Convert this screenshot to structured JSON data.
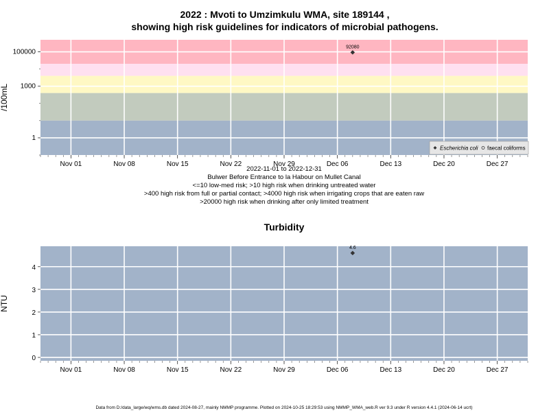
{
  "title_line1": "2022 : Mvoti to Umzimkulu WMA, site 189144 ,",
  "title_line2": "showing high risk guidelines for indicators of microbial pathogens.",
  "subtitle_lines": [
    "2022-11-01 to 2022-12-31",
    "Bulwer Before Entrance to la Habour on Mullet Canal",
    "<=10 low-med risk; >10 high risk when drinking untreated water",
    ">400 high risk from full or partial contact; >4000 high risk when irrigating crops that are eaten raw",
    ">20000 high risk when drinking after only limited treatment"
  ],
  "footer": "Data from D:/data_large/wq/wms.db dated 2024-08-27, mainly NMMP programme. Plotted on 2024-10-25 18:29:53 using NMMP_WMA_web.R ver 9.3 under R version 4.4.1 (2024-06-14 ucrt)",
  "colors": {
    "risk_very_high": "#ffb6c1",
    "risk_high_mid": "#ffe0f0",
    "risk_high": "#fff8c4",
    "risk_medium": "#c2cbbe",
    "risk_low": "#a2b3c9",
    "grid": "#ffffff",
    "point": "#333333"
  },
  "chart_data": [
    {
      "type": "scatter",
      "title": "",
      "xlabel": "",
      "ylabel": "/100mL",
      "y_scale": "log",
      "x_range": [
        "2022-10-28",
        "2022-12-31"
      ],
      "ylim": [
        0.1,
        500000
      ],
      "x_ticks": [
        {
          "date": "2022-11-01",
          "label": "Nov 01"
        },
        {
          "date": "2022-11-08",
          "label": "Nov 08"
        },
        {
          "date": "2022-11-15",
          "label": "Nov 15"
        },
        {
          "date": "2022-11-22",
          "label": "Nov 22"
        },
        {
          "date": "2022-11-29",
          "label": "Nov 29"
        },
        {
          "date": "2022-12-06",
          "label": "Dec 06"
        },
        {
          "date": "2022-12-13",
          "label": "Dec 13"
        },
        {
          "date": "2022-12-20",
          "label": "Dec 20"
        },
        {
          "date": "2022-12-27",
          "label": "Dec 27"
        }
      ],
      "y_ticks": [
        {
          "value": 1,
          "label": "1"
        },
        {
          "value": 1000,
          "label": "1000"
        },
        {
          "value": 100000,
          "label": "100000"
        }
      ],
      "risk_bands": [
        {
          "from": 20000,
          "to": 500000
        },
        {
          "from": 4000,
          "to": 20000
        },
        {
          "from": 400,
          "to": 4000
        },
        {
          "from": 10,
          "to": 400
        },
        {
          "from": 0.1,
          "to": 10
        }
      ],
      "series": [
        {
          "name": "Escherichia coli",
          "marker": "filled-diamond",
          "points": [
            {
              "x": "2022-12-08",
              "y": 92080,
              "label": "92080"
            }
          ]
        },
        {
          "name": "faecal coliforms",
          "marker": "open-circle",
          "points": []
        }
      ],
      "legend_position": "bottom-right",
      "grid": true
    },
    {
      "type": "scatter",
      "title": "Turbidity",
      "xlabel": "",
      "ylabel": "NTU",
      "x_range": [
        "2022-10-28",
        "2022-12-31"
      ],
      "ylim": [
        -0.15,
        4.9
      ],
      "x_ticks": [
        {
          "date": "2022-11-01",
          "label": "Nov 01"
        },
        {
          "date": "2022-11-08",
          "label": "Nov 08"
        },
        {
          "date": "2022-11-15",
          "label": "Nov 15"
        },
        {
          "date": "2022-11-22",
          "label": "Nov 22"
        },
        {
          "date": "2022-11-29",
          "label": "Nov 29"
        },
        {
          "date": "2022-12-06",
          "label": "Dec 06"
        },
        {
          "date": "2022-12-13",
          "label": "Dec 13"
        },
        {
          "date": "2022-12-20",
          "label": "Dec 20"
        },
        {
          "date": "2022-12-27",
          "label": "Dec 27"
        }
      ],
      "y_ticks": [
        {
          "value": 0,
          "label": "0"
        },
        {
          "value": 1,
          "label": "1"
        },
        {
          "value": 2,
          "label": "2"
        },
        {
          "value": 3,
          "label": "3"
        },
        {
          "value": 4,
          "label": "4"
        }
      ],
      "series": [
        {
          "name": "",
          "marker": "filled-diamond",
          "points": [
            {
              "x": "2022-12-08",
              "y": 4.6,
              "label": "4.6"
            }
          ]
        }
      ],
      "grid": true
    }
  ]
}
